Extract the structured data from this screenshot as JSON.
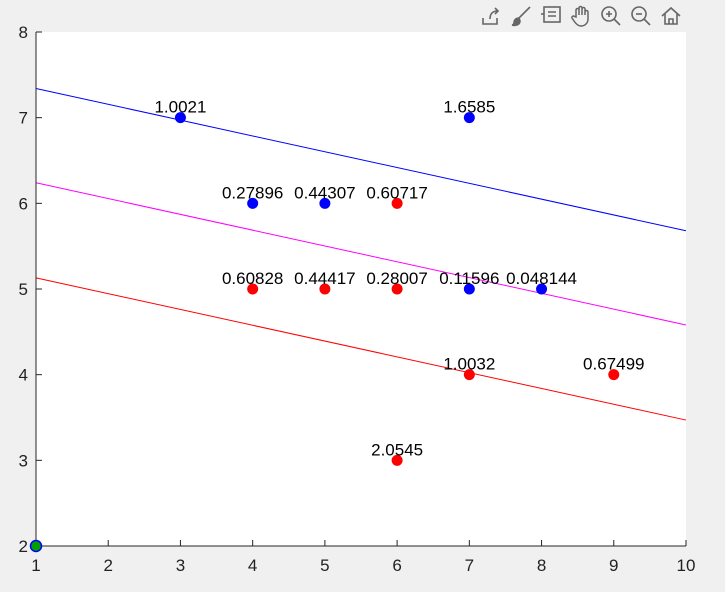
{
  "toolbar": {
    "buttons": [
      {
        "icon": "export-icon"
      },
      {
        "icon": "brush-icon"
      },
      {
        "icon": "data-tips-icon"
      },
      {
        "icon": "pan-icon"
      },
      {
        "icon": "zoom-in-icon"
      },
      {
        "icon": "zoom-out-icon"
      },
      {
        "icon": "home-icon"
      }
    ]
  },
  "chart_data": {
    "type": "scatter",
    "title": "",
    "xlabel": "",
    "ylabel": "",
    "xlim": [
      1,
      10
    ],
    "ylim": [
      2,
      8
    ],
    "xticks": [
      1,
      2,
      3,
      4,
      5,
      6,
      7,
      8,
      9,
      10
    ],
    "yticks": [
      2,
      3,
      4,
      5,
      6,
      7,
      8
    ],
    "grid": false,
    "colors": {
      "blue": "#0000ff",
      "red": "#ff0000",
      "magenta": "#ff00ff",
      "start_point_fill": "#00a000"
    },
    "lines": [
      {
        "color": "blue",
        "x": [
          1,
          10
        ],
        "y": [
          7.34,
          5.68
        ]
      },
      {
        "color": "magenta",
        "x": [
          1,
          10
        ],
        "y": [
          6.24,
          4.58
        ]
      },
      {
        "color": "red",
        "x": [
          1,
          10
        ],
        "y": [
          5.13,
          3.47
        ]
      }
    ],
    "points": [
      {
        "x": 3,
        "y": 7,
        "color": "blue",
        "label": "1.0021"
      },
      {
        "x": 7,
        "y": 7,
        "color": "blue",
        "label": "1.6585"
      },
      {
        "x": 4,
        "y": 6,
        "color": "blue",
        "label": "0.27896"
      },
      {
        "x": 5,
        "y": 6,
        "color": "blue",
        "label": "0.44307"
      },
      {
        "x": 6,
        "y": 6,
        "color": "red",
        "label": "0.60717"
      },
      {
        "x": 4,
        "y": 5,
        "color": "red",
        "label": "0.60828"
      },
      {
        "x": 5,
        "y": 5,
        "color": "red",
        "label": "0.44417"
      },
      {
        "x": 6,
        "y": 5,
        "color": "red",
        "label": "0.28007"
      },
      {
        "x": 7,
        "y": 5,
        "color": "blue",
        "label": "0.11596"
      },
      {
        "x": 8,
        "y": 5,
        "color": "blue",
        "label": "0.048144"
      },
      {
        "x": 7,
        "y": 4,
        "color": "red",
        "label": "1.0032"
      },
      {
        "x": 9,
        "y": 4,
        "color": "red",
        "label": "0.67499"
      },
      {
        "x": 6,
        "y": 3,
        "color": "red",
        "label": "2.0545"
      },
      {
        "x": 1,
        "y": 2,
        "color": "start_point_fill",
        "label": ""
      }
    ]
  }
}
